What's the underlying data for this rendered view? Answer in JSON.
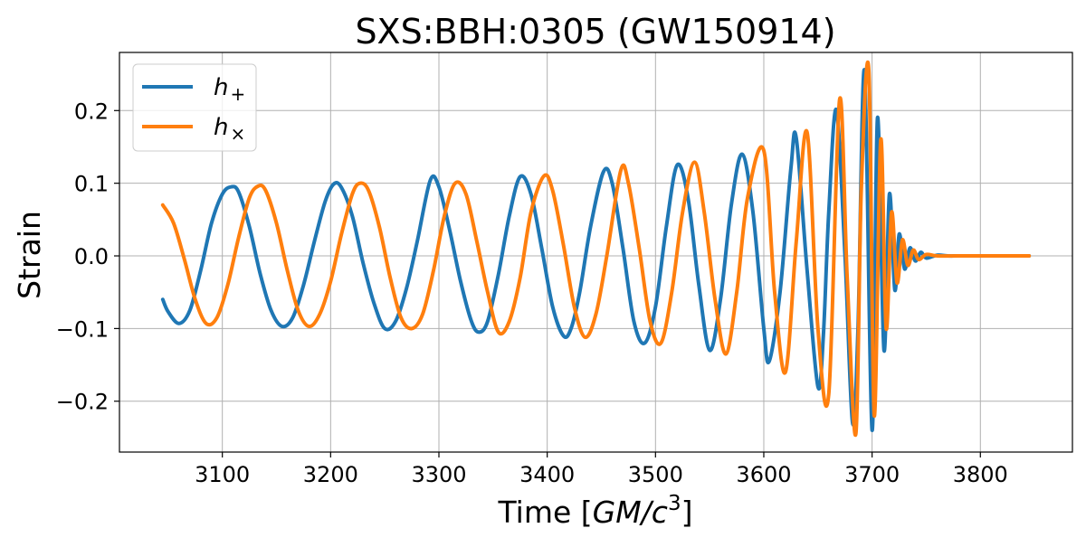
{
  "chart_data": {
    "type": "line",
    "title": "SXS:BBH:0305 (GW150914)",
    "xlabel": {
      "prefix": "Time [",
      "italic": "GM/c",
      "superscript": "3",
      "suffix": "]"
    },
    "ylabel": "Strain",
    "xlim": [
      3005,
      3885
    ],
    "ylim": [
      -0.27,
      0.28
    ],
    "x_ticks": [
      3100,
      3200,
      3300,
      3400,
      3500,
      3600,
      3700,
      3800
    ],
    "x_tick_labels": [
      "3100",
      "3200",
      "3300",
      "3400",
      "3500",
      "3600",
      "3700",
      "3800"
    ],
    "y_ticks": [
      -0.2,
      -0.1,
      0.0,
      0.1,
      0.2
    ],
    "y_tick_labels": [
      "−0.2",
      "−0.1",
      "0.0",
      "0.1",
      "0.2"
    ],
    "grid": true,
    "legend_position": "top-left",
    "series": [
      {
        "name": "h+",
        "legend_symbol": "h",
        "legend_sub": "+",
        "color": "#1f77b4",
        "x": [
          3045,
          3050,
          3060,
          3070,
          3080,
          3090,
          3100,
          3108,
          3115,
          3125,
          3135,
          3145,
          3155,
          3165,
          3175,
          3185,
          3195,
          3203,
          3210,
          3220,
          3230,
          3240,
          3250,
          3260,
          3270,
          3280,
          3292,
          3300,
          3310,
          3320,
          3330,
          3337,
          3345,
          3355,
          3365,
          3375,
          3385,
          3395,
          3405,
          3415,
          3422,
          3430,
          3440,
          3452,
          3460,
          3470,
          3480,
          3490,
          3500,
          3510,
          3520,
          3530,
          3540,
          3550,
          3560,
          3570,
          3580,
          3590,
          3600,
          3605,
          3615,
          3625,
          3630,
          3640,
          3650,
          3655,
          3660,
          3667,
          3675,
          3682,
          3687,
          3693,
          3700,
          3705,
          3711,
          3716,
          3721,
          3725,
          3730,
          3735,
          3740,
          3745,
          3750,
          3760,
          3770,
          3780,
          3800,
          3845
        ],
        "y": [
          -0.06,
          -0.077,
          -0.093,
          -0.075,
          -0.02,
          0.045,
          0.085,
          0.095,
          0.088,
          0.04,
          -0.025,
          -0.075,
          -0.097,
          -0.085,
          -0.04,
          0.02,
          0.075,
          0.099,
          0.094,
          0.055,
          -0.01,
          -0.065,
          -0.1,
          -0.09,
          -0.045,
          0.02,
          0.104,
          0.095,
          0.035,
          -0.035,
          -0.09,
          -0.105,
          -0.09,
          -0.025,
          0.055,
          0.109,
          0.085,
          0.01,
          -0.07,
          -0.11,
          -0.1,
          -0.05,
          0.04,
          0.116,
          0.1,
          0.01,
          -0.09,
          -0.12,
          -0.07,
          0.04,
          0.125,
          0.08,
          -0.04,
          -0.13,
          -0.06,
          0.07,
          0.14,
          0.06,
          -0.1,
          -0.145,
          -0.05,
          0.12,
          0.162,
          -0.02,
          -0.18,
          -0.11,
          0.06,
          0.201,
          0.0,
          -0.23,
          -0.1,
          0.255,
          -0.24,
          0.19,
          -0.13,
          0.085,
          -0.047,
          0.03,
          -0.018,
          0.011,
          -0.007,
          0.005,
          -0.003,
          0.001,
          0.0,
          0.0,
          0.0,
          0.0
        ]
      },
      {
        "name": "h×",
        "legend_symbol": "h",
        "legend_sub": "×",
        "color": "#ff7f0e",
        "x": [
          3045,
          3055,
          3065,
          3075,
          3085,
          3095,
          3105,
          3115,
          3125,
          3133,
          3140,
          3150,
          3160,
          3170,
          3180,
          3190,
          3200,
          3210,
          3220,
          3227,
          3235,
          3245,
          3255,
          3265,
          3275,
          3285,
          3295,
          3305,
          3315,
          3325,
          3335,
          3345,
          3355,
          3365,
          3375,
          3385,
          3397,
          3405,
          3415,
          3425,
          3435,
          3445,
          3455,
          3468,
          3475,
          3485,
          3495,
          3505,
          3515,
          3525,
          3536,
          3545,
          3555,
          3565,
          3575,
          3585,
          3600,
          3610,
          3620,
          3630,
          3640,
          3650,
          3660,
          3670,
          3677,
          3685,
          3690,
          3697,
          3702,
          3708,
          3713,
          3718,
          3723,
          3728,
          3733,
          3738,
          3743,
          3750,
          3760,
          3780,
          3845
        ],
        "y": [
          0.07,
          0.045,
          -0.005,
          -0.06,
          -0.093,
          -0.085,
          -0.04,
          0.025,
          0.08,
          0.096,
          0.09,
          0.045,
          -0.02,
          -0.075,
          -0.097,
          -0.08,
          -0.035,
          0.03,
          0.085,
          0.1,
          0.09,
          0.04,
          -0.03,
          -0.085,
          -0.1,
          -0.08,
          -0.02,
          0.055,
          0.1,
          0.085,
          0.02,
          -0.05,
          -0.105,
          -0.09,
          -0.03,
          0.06,
          0.11,
          0.09,
          0.015,
          -0.07,
          -0.112,
          -0.08,
          0.0,
          0.118,
          0.1,
          0.01,
          -0.09,
          -0.12,
          -0.05,
          0.06,
          0.129,
          0.06,
          -0.06,
          -0.135,
          -0.05,
          0.08,
          0.145,
          -0.05,
          -0.16,
          0.02,
          0.17,
          -0.1,
          -0.19,
          0.215,
          -0.03,
          -0.245,
          0.09,
          0.255,
          -0.22,
          0.16,
          -0.1,
          0.06,
          -0.037,
          0.022,
          -0.013,
          0.008,
          -0.005,
          0.002,
          0.0,
          0.0,
          0.0
        ]
      }
    ]
  }
}
